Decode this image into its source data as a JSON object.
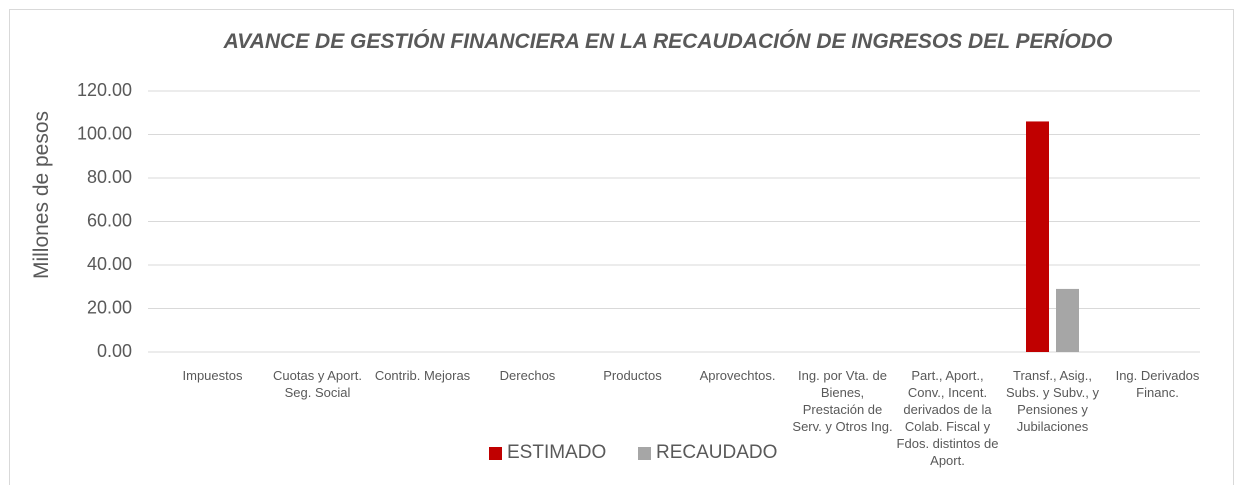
{
  "chart_data": {
    "type": "bar",
    "title": "AVANCE DE GESTIÓN FINANCIERA EN LA RECAUDACIÓN DE INGRESOS DEL PERÍODO",
    "y_label": "Millones de pesos",
    "categories": [
      "Impuestos",
      "Cuotas y Aport. Seg. Social",
      "Contrib. Mejoras",
      "Derechos",
      "Productos",
      "Aprovechtos.",
      "Ing. por Vta. de Bienes, Prestación de Serv. y Otros Ing.",
      "Part., Aport., Conv., Incent. derivados de la Colab. Fiscal y Fdos. distintos de Aport.",
      "Transf., Asig., Subs. y Subv., y Pensiones y Jubilaciones",
      "Ing. Derivados Financ."
    ],
    "series": [
      {
        "name": "ESTIMADO",
        "color": "#c00000",
        "values": [
          0,
          0,
          0,
          0,
          0,
          0,
          0,
          0,
          106,
          0
        ]
      },
      {
        "name": "RECAUDADO",
        "color": "#a6a6a6",
        "values": [
          0,
          0,
          0,
          0,
          0,
          0,
          0,
          0,
          29,
          0
        ]
      }
    ],
    "ylim": [
      0,
      120
    ],
    "yticks": [
      {
        "value": 0,
        "label": "0.00"
      },
      {
        "value": 20,
        "label": "20.00"
      },
      {
        "value": 40,
        "label": "40.00"
      },
      {
        "value": 60,
        "label": "60.00"
      },
      {
        "value": 80,
        "label": "80.00"
      },
      {
        "value": 100,
        "label": "100.00"
      },
      {
        "value": 120,
        "label": "120.00"
      }
    ],
    "grid": true
  }
}
